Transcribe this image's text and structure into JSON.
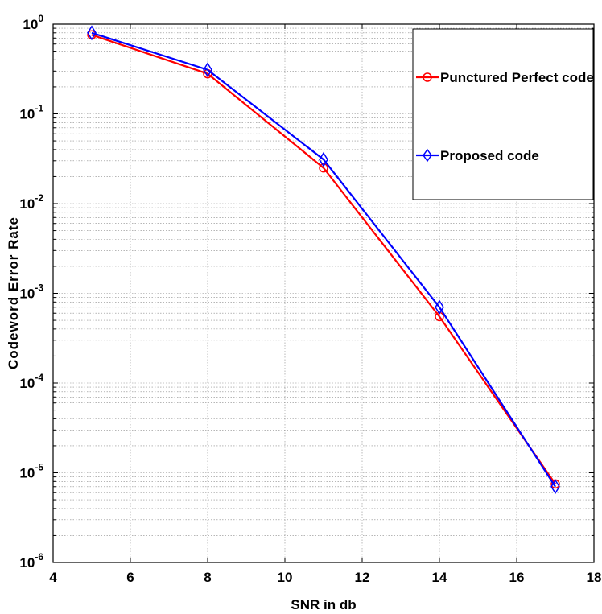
{
  "chart_data": {
    "type": "line",
    "xlabel": "SNR in db",
    "ylabel": "Codeword Error Rate",
    "xlim": [
      4,
      18
    ],
    "ylim": [
      1e-06,
      1
    ],
    "yscale": "log",
    "grid": true,
    "legend_position": "top-right",
    "x_ticks": [
      "4",
      "6",
      "8",
      "10",
      "12",
      "14",
      "16",
      "18"
    ],
    "y_ticks": [
      {
        "base": "10",
        "exp": "-6"
      },
      {
        "base": "10",
        "exp": "-5"
      },
      {
        "base": "10",
        "exp": "-4"
      },
      {
        "base": "10",
        "exp": "-3"
      },
      {
        "base": "10",
        "exp": "-2"
      },
      {
        "base": "10",
        "exp": "-1"
      },
      {
        "base": "10",
        "exp": "0"
      }
    ],
    "x": [
      5,
      8,
      11,
      14,
      17
    ],
    "series": [
      {
        "name": "Punctured Perfect code",
        "color": "#ff0000",
        "marker": "circle",
        "values": [
          0.76,
          0.28,
          0.025,
          0.00055,
          7.5e-06
        ]
      },
      {
        "name": "Proposed code",
        "color": "#0000ff",
        "marker": "diamond",
        "values": [
          0.8,
          0.31,
          0.031,
          0.0007,
          7e-06
        ]
      }
    ]
  }
}
